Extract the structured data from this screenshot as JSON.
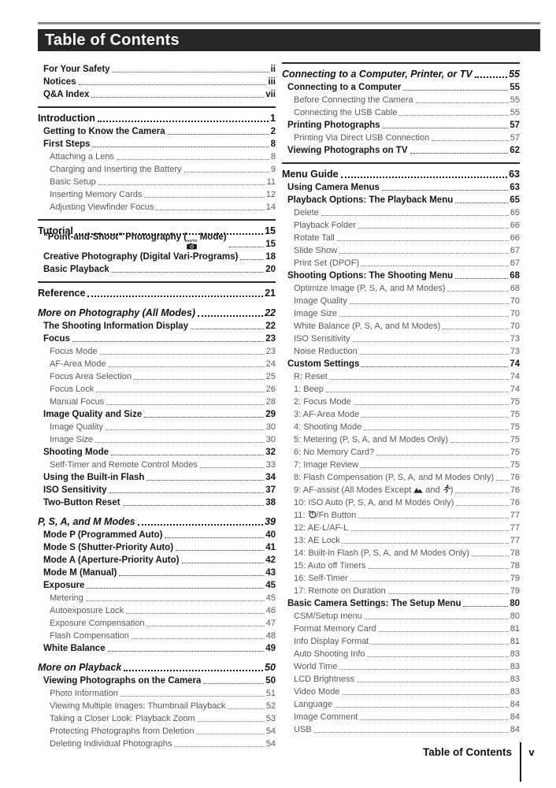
{
  "page": {
    "header": {
      "title": "Table of Contents"
    },
    "footer": {
      "label": "Table of Contents",
      "page_number": "v"
    },
    "colors": {
      "header_bg": "#272727",
      "header_text": "#ffffff",
      "main_text": "#1c1c1c",
      "sub_text": "#58585a",
      "part_rule": "#2d2d2d",
      "top_rule": "#8c8c8c"
    }
  },
  "icons": {
    "auto": "auto-mode-camera-icon",
    "landscape": "landscape-mode-icon",
    "sports": "sports-mode-icon",
    "timer": "self-timer-icon"
  },
  "columns": [
    {
      "entries": [
        {
          "title": "For Your Safety",
          "page": "ii",
          "level": "section"
        },
        {
          "title": "Notices",
          "page": "iii",
          "level": "section"
        },
        {
          "title": "Q&A Index",
          "page": "vii",
          "level": "section"
        },
        {
          "title": "Introduction",
          "page": "1",
          "level": "part",
          "rule_above": true
        },
        {
          "title": "Getting to Know the Camera",
          "page": "2",
          "level": "section"
        },
        {
          "title": "First Steps",
          "page": "8",
          "level": "section"
        },
        {
          "title": "Attaching a Lens",
          "page": "8",
          "level": "sub"
        },
        {
          "title": "Charging and Inserting the Battery",
          "page": "9",
          "level": "sub"
        },
        {
          "title": "Basic Setup",
          "page": "11",
          "level": "sub"
        },
        {
          "title": "Inserting Memory Cards",
          "page": "12",
          "level": "sub"
        },
        {
          "title": "Adjusting Viewfinder Focus",
          "page": "14",
          "level": "sub"
        },
        {
          "title": "Tutorial",
          "page": "15",
          "level": "part",
          "rule_above": true
        },
        {
          "title": "“Point-and-Shoot” Photography ({auto} Mode)",
          "page": "15",
          "level": "section"
        },
        {
          "title": "Creative Photography (Digital Vari-Programs)",
          "page": "18",
          "level": "section"
        },
        {
          "title": "Basic Playback",
          "page": "20",
          "level": "section"
        },
        {
          "title": "Reference",
          "page": "21",
          "level": "part",
          "rule_above": true
        },
        {
          "title": "More on Photography (All Modes)",
          "page": "22",
          "level": "chapter"
        },
        {
          "title": "The Shooting Information Display",
          "page": "22",
          "level": "section"
        },
        {
          "title": "Focus",
          "page": "23",
          "level": "section"
        },
        {
          "title": "Focus Mode",
          "page": "23",
          "level": "sub"
        },
        {
          "title": "AF-Area Mode",
          "page": "24",
          "level": "sub"
        },
        {
          "title": "Focus Area Selection",
          "page": "25",
          "level": "sub"
        },
        {
          "title": "Focus Lock",
          "page": "26",
          "level": "sub"
        },
        {
          "title": "Manual Focus",
          "page": "28",
          "level": "sub"
        },
        {
          "title": "Image Quality and Size",
          "page": "29",
          "level": "section"
        },
        {
          "title": "Image Quality",
          "page": "30",
          "level": "sub"
        },
        {
          "title": "Image Size",
          "page": "30",
          "level": "sub"
        },
        {
          "title": "Shooting Mode",
          "page": "32",
          "level": "section"
        },
        {
          "title": "Self-Timer and Remote Control Modes",
          "page": "33",
          "level": "sub"
        },
        {
          "title": "Using the Built-in Flash",
          "page": "34",
          "level": "section"
        },
        {
          "title": "ISO Sensitivity",
          "page": "37",
          "level": "section"
        },
        {
          "title": "Two-Button Reset",
          "page": "38",
          "level": "section"
        },
        {
          "title": "P, S, A, and M Modes",
          "page": "39",
          "level": "chapter"
        },
        {
          "title": "Mode P (Programmed Auto)",
          "page": "40",
          "level": "section"
        },
        {
          "title": "Mode S (Shutter-Priority Auto)",
          "page": "41",
          "level": "section"
        },
        {
          "title": "Mode A (Aperture-Priority Auto)",
          "page": "42",
          "level": "section"
        },
        {
          "title": "Mode M (Manual)",
          "page": "43",
          "level": "section"
        },
        {
          "title": "Exposure",
          "page": "45",
          "level": "section"
        },
        {
          "title": "Metering",
          "page": "45",
          "level": "sub"
        },
        {
          "title": "Autoexposure Lock",
          "page": "46",
          "level": "sub"
        },
        {
          "title": "Exposure Compensation",
          "page": "47",
          "level": "sub"
        },
        {
          "title": "Flash Compensation",
          "page": "48",
          "level": "sub"
        },
        {
          "title": "White Balance",
          "page": "49",
          "level": "section"
        },
        {
          "title": "More on Playback",
          "page": "50",
          "level": "chapter"
        },
        {
          "title": "Viewing Photographs on the Camera",
          "page": "50",
          "level": "section"
        },
        {
          "title": "Photo Information",
          "page": "51",
          "level": "sub"
        },
        {
          "title": "Viewing Multiple Images: Thumbnail Playback",
          "page": "52",
          "level": "sub"
        },
        {
          "title": "Taking a Closer Look: Playback Zoom",
          "page": "53",
          "level": "sub"
        },
        {
          "title": "Protecting Photographs from Deletion",
          "page": "54",
          "level": "sub"
        },
        {
          "title": "Deleting Individual Photographs",
          "page": "54",
          "level": "sub"
        }
      ]
    },
    {
      "entries": [
        {
          "title": "Connecting to a Computer, Printer, or TV",
          "page": "55",
          "level": "chapter",
          "rule_above": true
        },
        {
          "title": "Connecting to a Computer",
          "page": "55",
          "level": "section"
        },
        {
          "title": "Before Connecting the Camera",
          "page": "55",
          "level": "sub"
        },
        {
          "title": "Connecting the USB Cable",
          "page": "55",
          "level": "sub"
        },
        {
          "title": "Printing Photographs",
          "page": "57",
          "level": "section"
        },
        {
          "title": "Printing Via Direct USB Connection",
          "page": "57",
          "level": "sub"
        },
        {
          "title": "Viewing Photographs on TV",
          "page": "62",
          "level": "section"
        },
        {
          "title": "Menu Guide",
          "page": "63",
          "level": "part",
          "rule_above": true
        },
        {
          "title": "Using Camera Menus",
          "page": "63",
          "level": "section"
        },
        {
          "title": "Playback Options: The Playback Menu",
          "page": "65",
          "level": "section"
        },
        {
          "title": "Delete",
          "page": "65",
          "level": "sub"
        },
        {
          "title": "Playback Folder",
          "page": "66",
          "level": "sub"
        },
        {
          "title": "Rotate Tall",
          "page": "66",
          "level": "sub"
        },
        {
          "title": "Slide Show",
          "page": "67",
          "level": "sub"
        },
        {
          "title": "Print Set (DPOF)",
          "page": "67",
          "level": "sub"
        },
        {
          "title": "Shooting Options: The Shooting Menu",
          "page": "68",
          "level": "section"
        },
        {
          "title": "Optimize Image (P, S, A, and M Modes)",
          "page": "68",
          "level": "sub"
        },
        {
          "title": "Image Quality",
          "page": "70",
          "level": "sub"
        },
        {
          "title": "Image Size",
          "page": "70",
          "level": "sub"
        },
        {
          "title": "White Balance (P, S, A, and M Modes)",
          "page": "70",
          "level": "sub"
        },
        {
          "title": "ISO Sensitivity",
          "page": "73",
          "level": "sub"
        },
        {
          "title": "Noise Reduction",
          "page": "73",
          "level": "sub"
        },
        {
          "title": "Custom Settings",
          "page": "74",
          "level": "section"
        },
        {
          "title": "R: Reset",
          "page": "74",
          "level": "sub"
        },
        {
          "title": "1: Beep",
          "page": "74",
          "level": "sub"
        },
        {
          "title": "2: Focus Mode",
          "page": "75",
          "level": "sub"
        },
        {
          "title": "3: AF-Area Mode",
          "page": "75",
          "level": "sub"
        },
        {
          "title": "4: Shooting Mode",
          "page": "75",
          "level": "sub"
        },
        {
          "title": "5: Metering (P, S, A, and M Modes Only)",
          "page": "75",
          "level": "sub"
        },
        {
          "title": "6: No Memory Card?",
          "page": "75",
          "level": "sub"
        },
        {
          "title": "7: Image Review",
          "page": "75",
          "level": "sub"
        },
        {
          "title": "8: Flash Compensation (P, S, A, and M Modes Only)",
          "page": "76",
          "level": "sub"
        },
        {
          "title": "9: AF-assist (All Modes Except {landscape} and {sports})",
          "page": "76",
          "level": "sub"
        },
        {
          "title": "10: ISO Auto (P, S, A, and M Modes Only)",
          "page": "76",
          "level": "sub"
        },
        {
          "title": "11: {timer}/Fn Button",
          "page": "77",
          "level": "sub"
        },
        {
          "title": "12: AE-L/AF-L",
          "page": "77",
          "level": "sub"
        },
        {
          "title": "13: AE Lock",
          "page": "77",
          "level": "sub"
        },
        {
          "title": "14: Built-in Flash (P, S, A, and M Modes Only)",
          "page": "78",
          "level": "sub"
        },
        {
          "title": "15: Auto off Timers",
          "page": "78",
          "level": "sub"
        },
        {
          "title": "16: Self-Timer",
          "page": "79",
          "level": "sub"
        },
        {
          "title": "17: Remote on Duration",
          "page": "79",
          "level": "sub"
        },
        {
          "title": "Basic Camera Settings: The Setup Menu",
          "page": "80",
          "level": "section"
        },
        {
          "title": "CSM/Setup menu",
          "page": "80",
          "level": "sub"
        },
        {
          "title": "Format Memory Card",
          "page": "81",
          "level": "sub"
        },
        {
          "title": "Info Display Format",
          "page": "81",
          "level": "sub"
        },
        {
          "title": "Auto Shooting Info",
          "page": "83",
          "level": "sub"
        },
        {
          "title": "World Time",
          "page": "83",
          "level": "sub"
        },
        {
          "title": "LCD Brightness",
          "page": "83",
          "level": "sub"
        },
        {
          "title": "Video Mode",
          "page": "83",
          "level": "sub"
        },
        {
          "title": "Language",
          "page": "84",
          "level": "sub"
        },
        {
          "title": "Image Comment",
          "page": "84",
          "level": "sub"
        },
        {
          "title": "USB",
          "page": "84",
          "level": "sub"
        }
      ]
    }
  ]
}
